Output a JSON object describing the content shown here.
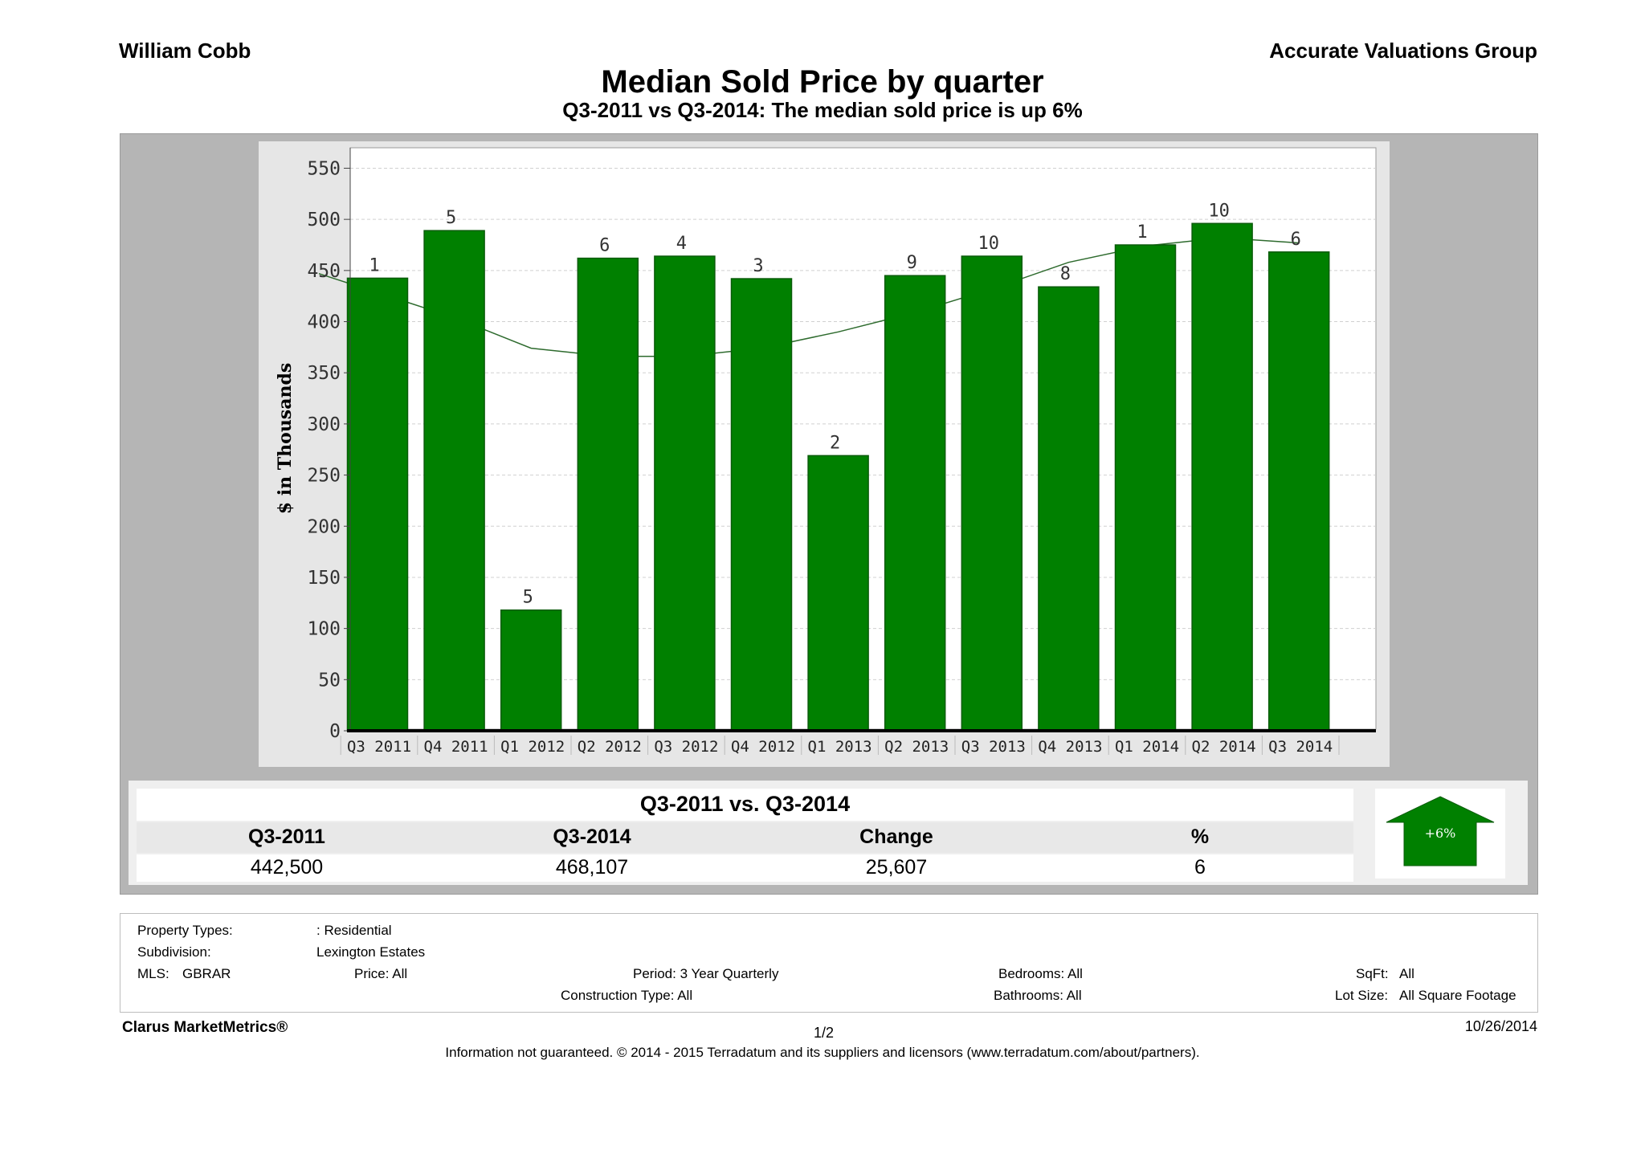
{
  "header": {
    "agent": "William  Cobb",
    "company": "Accurate Valuations Group",
    "title": "Median Sold Price by quarter",
    "subtitle": "Q3-2011 vs Q3-2014: The median sold price is up 6%"
  },
  "chart_data": {
    "type": "bar",
    "ylabel": "$ in Thousands",
    "ylim": [
      0,
      570
    ],
    "yticks": [
      0,
      50,
      100,
      150,
      200,
      250,
      300,
      350,
      400,
      450,
      500,
      550
    ],
    "grid": true,
    "categories": [
      "Q3 2011",
      "Q4 2011",
      "Q1 2012",
      "Q2 2012",
      "Q3 2012",
      "Q4 2012",
      "Q1 2013",
      "Q2 2013",
      "Q3 2013",
      "Q4 2013",
      "Q1 2014",
      "Q2 2014",
      "Q3 2014"
    ],
    "series": [
      {
        "values": [
          442.5,
          489,
          118,
          462,
          464,
          442,
          269,
          445,
          464,
          434,
          475,
          496,
          468.107
        ]
      }
    ],
    "bar_labels": [
      "1",
      "5",
      "5",
      "6",
      "4",
      "3",
      "2",
      "9",
      "10",
      "8",
      "1",
      "10",
      "6"
    ],
    "trend_line": [
      null,
      404,
      374,
      366,
      366,
      374,
      390,
      409,
      432,
      458,
      474,
      482,
      477
    ],
    "colors": {
      "bar": "#008000",
      "bar_edge": "#0a5c0a",
      "trend": "#2e6b2e"
    }
  },
  "summary": {
    "title": "Q3-2011 vs. Q3-2014",
    "headers": [
      "Q3-2011",
      "Q3-2014",
      "Change",
      "%"
    ],
    "values": [
      "442,500",
      "468,107",
      "25,607",
      "6"
    ],
    "badge": "+6%",
    "badge_color": "#008000"
  },
  "details": {
    "property_types_label": "Property Types:",
    "property_types_value": ": Residential",
    "subdivision_label": "Subdivision:",
    "subdivision_value": "Lexington Estates",
    "mls_label": "MLS:",
    "mls_value": "GBRAR",
    "price": "Price:  All",
    "period": "Period: 3 Year Quarterly",
    "construction": "Construction Type: All",
    "bedrooms": "Bedrooms:  All",
    "bathrooms": "Bathrooms:  All",
    "sqft_label": "SqFt:",
    "sqft_value": "All",
    "lot_label": "Lot Size:",
    "lot_value": "All Square Footage"
  },
  "footer": {
    "brand": "Clarus MarketMetrics®",
    "page": "1/2",
    "date": "10/26/2014",
    "disclaimer": "Information not guaranteed. © 2014 - 2015 Terradatum and its suppliers and licensors (www.terradatum.com/about/partners)."
  }
}
